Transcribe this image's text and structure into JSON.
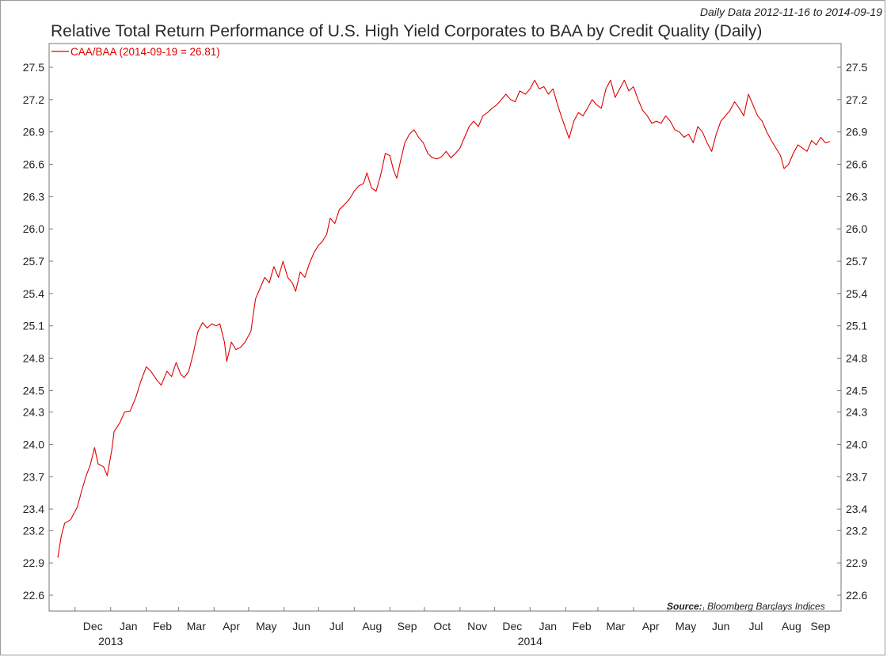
{
  "header": {
    "date_range": "Daily Data 2012-11-16 to 2014-09-19",
    "title": "Relative Total Return Performance of U.S. High Yield Corporates to BAA by Credit Quality (Daily)"
  },
  "footer": {
    "source_label": "Source:",
    "source_value": "Bloomberg Barclays Indices"
  },
  "chart_data": {
    "type": "line",
    "title": "Relative Total Return Performance of U.S. High Yield Corporates to BAA by Credit Quality (Daily)",
    "xlabel": "",
    "ylabel": "",
    "x_range": [
      "2012-11-16",
      "2014-09-19"
    ],
    "ylim": [
      22.6,
      27.5
    ],
    "y_ticks": [
      22.6,
      22.9,
      23.2,
      23.4,
      23.7,
      24.0,
      24.3,
      24.5,
      24.8,
      25.1,
      25.4,
      25.7,
      26.0,
      26.3,
      26.6,
      26.9,
      27.2,
      27.5
    ],
    "x_ticks": [
      {
        "date": "2012-12-01",
        "label": "Dec"
      },
      {
        "date": "2013-01-01",
        "label": "Jan",
        "year": "2013"
      },
      {
        "date": "2013-02-01",
        "label": "Feb"
      },
      {
        "date": "2013-03-01",
        "label": "Mar"
      },
      {
        "date": "2013-04-01",
        "label": "Apr"
      },
      {
        "date": "2013-05-01",
        "label": "May"
      },
      {
        "date": "2013-06-01",
        "label": "Jun"
      },
      {
        "date": "2013-07-01",
        "label": "Jul"
      },
      {
        "date": "2013-08-01",
        "label": "Aug"
      },
      {
        "date": "2013-09-01",
        "label": "Sep"
      },
      {
        "date": "2013-10-01",
        "label": "Oct"
      },
      {
        "date": "2013-11-01",
        "label": "Nov"
      },
      {
        "date": "2013-12-01",
        "label": "Dec"
      },
      {
        "date": "2014-01-01",
        "label": "Jan",
        "year": "2014"
      },
      {
        "date": "2014-02-01",
        "label": "Feb"
      },
      {
        "date": "2014-03-01",
        "label": "Mar"
      },
      {
        "date": "2014-04-01",
        "label": "Apr"
      },
      {
        "date": "2014-05-01",
        "label": "May"
      },
      {
        "date": "2014-06-01",
        "label": "Jun"
      },
      {
        "date": "2014-07-01",
        "label": "Jul"
      },
      {
        "date": "2014-08-01",
        "label": "Aug"
      },
      {
        "date": "2014-09-01",
        "label": "Sep"
      }
    ],
    "grid": false,
    "legend_position": "top-left",
    "series": [
      {
        "name": "CAA/BAA (2014-09-19 = 26.81)",
        "color": "#e00000",
        "points": [
          [
            "2012-11-16",
            22.95
          ],
          [
            "2012-11-19",
            23.15
          ],
          [
            "2012-11-22",
            23.27
          ],
          [
            "2012-11-27",
            23.3
          ],
          [
            "2012-12-03",
            23.42
          ],
          [
            "2012-12-07",
            23.58
          ],
          [
            "2012-12-11",
            23.72
          ],
          [
            "2012-12-14",
            23.8
          ],
          [
            "2012-12-18",
            23.97
          ],
          [
            "2012-12-21",
            23.82
          ],
          [
            "2012-12-26",
            23.79
          ],
          [
            "2012-12-29",
            23.71
          ],
          [
            "2013-01-02",
            23.95
          ],
          [
            "2013-01-04",
            24.12
          ],
          [
            "2013-01-09",
            24.2
          ],
          [
            "2013-01-13",
            24.3
          ],
          [
            "2013-01-18",
            24.31
          ],
          [
            "2013-01-23",
            24.44
          ],
          [
            "2013-01-27",
            24.58
          ],
          [
            "2013-02-01",
            24.72
          ],
          [
            "2013-02-05",
            24.68
          ],
          [
            "2013-02-10",
            24.6
          ],
          [
            "2013-02-14",
            24.55
          ],
          [
            "2013-02-19",
            24.68
          ],
          [
            "2013-02-23",
            24.63
          ],
          [
            "2013-02-27",
            24.76
          ],
          [
            "2013-03-03",
            24.65
          ],
          [
            "2013-03-06",
            24.62
          ],
          [
            "2013-03-10",
            24.68
          ],
          [
            "2013-03-14",
            24.85
          ],
          [
            "2013-03-18",
            25.05
          ],
          [
            "2013-03-22",
            25.13
          ],
          [
            "2013-03-26",
            25.08
          ],
          [
            "2013-03-30",
            25.12
          ],
          [
            "2013-04-03",
            25.1
          ],
          [
            "2013-04-06",
            25.12
          ],
          [
            "2013-04-10",
            24.95
          ],
          [
            "2013-04-12",
            24.77
          ],
          [
            "2013-04-16",
            24.95
          ],
          [
            "2013-04-20",
            24.88
          ],
          [
            "2013-04-24",
            24.9
          ],
          [
            "2013-04-28",
            24.95
          ],
          [
            "2013-05-03",
            25.05
          ],
          [
            "2013-05-07",
            25.35
          ],
          [
            "2013-05-11",
            25.45
          ],
          [
            "2013-05-15",
            25.55
          ],
          [
            "2013-05-19",
            25.5
          ],
          [
            "2013-05-23",
            25.65
          ],
          [
            "2013-05-27",
            25.55
          ],
          [
            "2013-05-31",
            25.7
          ],
          [
            "2013-06-04",
            25.55
          ],
          [
            "2013-06-08",
            25.5
          ],
          [
            "2013-06-11",
            25.42
          ],
          [
            "2013-06-15",
            25.6
          ],
          [
            "2013-06-19",
            25.55
          ],
          [
            "2013-06-23",
            25.68
          ],
          [
            "2013-06-27",
            25.78
          ],
          [
            "2013-07-01",
            25.85
          ],
          [
            "2013-07-04",
            25.88
          ],
          [
            "2013-07-08",
            25.95
          ],
          [
            "2013-07-11",
            26.1
          ],
          [
            "2013-07-15",
            26.05
          ],
          [
            "2013-07-19",
            26.18
          ],
          [
            "2013-07-23",
            26.22
          ],
          [
            "2013-07-28",
            26.28
          ],
          [
            "2013-08-01",
            26.35
          ],
          [
            "2013-08-05",
            26.4
          ],
          [
            "2013-08-09",
            26.42
          ],
          [
            "2013-08-12",
            26.52
          ],
          [
            "2013-08-16",
            26.38
          ],
          [
            "2013-08-20",
            26.35
          ],
          [
            "2013-08-24",
            26.5
          ],
          [
            "2013-08-28",
            26.7
          ],
          [
            "2013-09-01",
            26.68
          ],
          [
            "2013-09-04",
            26.55
          ],
          [
            "2013-09-07",
            26.47
          ],
          [
            "2013-09-10",
            26.62
          ],
          [
            "2013-09-14",
            26.8
          ],
          [
            "2013-09-18",
            26.88
          ],
          [
            "2013-09-22",
            26.92
          ],
          [
            "2013-09-26",
            26.85
          ],
          [
            "2013-09-30",
            26.8
          ],
          [
            "2013-10-04",
            26.7
          ],
          [
            "2013-10-08",
            26.66
          ],
          [
            "2013-10-12",
            26.65
          ],
          [
            "2013-10-16",
            26.67
          ],
          [
            "2013-10-20",
            26.72
          ],
          [
            "2013-10-24",
            26.66
          ],
          [
            "2013-10-28",
            26.7
          ],
          [
            "2013-11-01",
            26.75
          ],
          [
            "2013-11-05",
            26.85
          ],
          [
            "2013-11-09",
            26.95
          ],
          [
            "2013-11-13",
            27.0
          ],
          [
            "2013-11-17",
            26.95
          ],
          [
            "2013-11-21",
            27.05
          ],
          [
            "2013-11-25",
            27.08
          ],
          [
            "2013-11-29",
            27.12
          ],
          [
            "2013-12-03",
            27.15
          ],
          [
            "2013-12-07",
            27.2
          ],
          [
            "2013-12-11",
            27.25
          ],
          [
            "2013-12-15",
            27.2
          ],
          [
            "2013-12-19",
            27.18
          ],
          [
            "2013-12-23",
            27.28
          ],
          [
            "2013-12-28",
            27.25
          ],
          [
            "2014-01-01",
            27.3
          ],
          [
            "2014-01-05",
            27.38
          ],
          [
            "2014-01-09",
            27.3
          ],
          [
            "2014-01-13",
            27.32
          ],
          [
            "2014-01-17",
            27.25
          ],
          [
            "2014-01-21",
            27.3
          ],
          [
            "2014-01-25",
            27.15
          ],
          [
            "2014-01-29",
            27.02
          ],
          [
            "2014-02-02",
            26.9
          ],
          [
            "2014-02-04",
            26.84
          ],
          [
            "2014-02-08",
            27.0
          ],
          [
            "2014-02-12",
            27.08
          ],
          [
            "2014-02-16",
            27.05
          ],
          [
            "2014-02-20",
            27.12
          ],
          [
            "2014-02-24",
            27.2
          ],
          [
            "2014-02-28",
            27.15
          ],
          [
            "2014-03-04",
            27.12
          ],
          [
            "2014-03-08",
            27.3
          ],
          [
            "2014-03-12",
            27.38
          ],
          [
            "2014-03-16",
            27.22
          ],
          [
            "2014-03-20",
            27.3
          ],
          [
            "2014-03-24",
            27.38
          ],
          [
            "2014-03-28",
            27.28
          ],
          [
            "2014-04-01",
            27.32
          ],
          [
            "2014-04-05",
            27.2
          ],
          [
            "2014-04-09",
            27.1
          ],
          [
            "2014-04-13",
            27.05
          ],
          [
            "2014-04-17",
            26.98
          ],
          [
            "2014-04-21",
            27.0
          ],
          [
            "2014-04-25",
            26.98
          ],
          [
            "2014-04-29",
            27.05
          ],
          [
            "2014-05-03",
            27.0
          ],
          [
            "2014-05-07",
            26.92
          ],
          [
            "2014-05-11",
            26.9
          ],
          [
            "2014-05-15",
            26.85
          ],
          [
            "2014-05-19",
            26.88
          ],
          [
            "2014-05-23",
            26.8
          ],
          [
            "2014-05-27",
            26.95
          ],
          [
            "2014-05-31",
            26.9
          ],
          [
            "2014-06-04",
            26.8
          ],
          [
            "2014-06-08",
            26.72
          ],
          [
            "2014-06-12",
            26.88
          ],
          [
            "2014-06-16",
            27.0
          ],
          [
            "2014-06-20",
            27.05
          ],
          [
            "2014-06-24",
            27.1
          ],
          [
            "2014-06-28",
            27.18
          ],
          [
            "2014-07-02",
            27.12
          ],
          [
            "2014-07-06",
            27.05
          ],
          [
            "2014-07-10",
            27.25
          ],
          [
            "2014-07-14",
            27.15
          ],
          [
            "2014-07-18",
            27.05
          ],
          [
            "2014-07-22",
            27.0
          ],
          [
            "2014-07-26",
            26.9
          ],
          [
            "2014-07-30",
            26.82
          ],
          [
            "2014-08-03",
            26.75
          ],
          [
            "2014-08-07",
            26.68
          ],
          [
            "2014-08-10",
            26.56
          ],
          [
            "2014-08-14",
            26.6
          ],
          [
            "2014-08-18",
            26.7
          ],
          [
            "2014-08-22",
            26.78
          ],
          [
            "2014-08-26",
            26.75
          ],
          [
            "2014-08-30",
            26.72
          ],
          [
            "2014-09-03",
            26.82
          ],
          [
            "2014-09-07",
            26.78
          ],
          [
            "2014-09-11",
            26.85
          ],
          [
            "2014-09-15",
            26.8
          ],
          [
            "2014-09-19",
            26.81
          ]
        ]
      }
    ]
  }
}
